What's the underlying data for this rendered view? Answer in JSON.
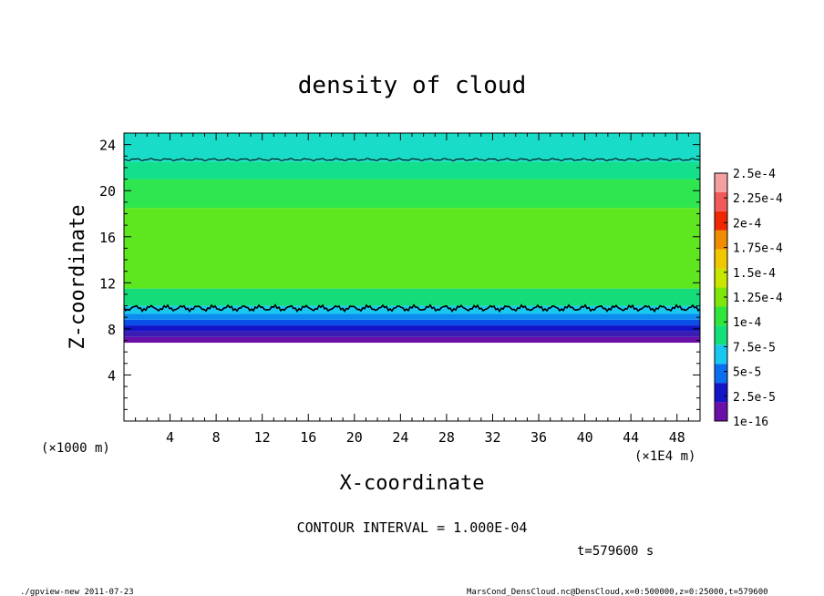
{
  "chart_data": {
    "type": "heatmap",
    "title": "density of cloud",
    "xlabel": "X-coordinate",
    "ylabel": "Z-coordinate",
    "x_units": "(×1E4 m)",
    "y_units": "(×1000 m)",
    "xlim": [
      0,
      50
    ],
    "ylim": [
      0,
      25
    ],
    "x_ticks": [
      4,
      8,
      12,
      16,
      20,
      24,
      28,
      32,
      36,
      40,
      44,
      48
    ],
    "y_ticks": [
      4,
      8,
      12,
      16,
      20,
      24
    ],
    "colorbar": {
      "labels": [
        "1e-16",
        "2.5e-5",
        "5e-5",
        "7.5e-5",
        "1e-4",
        "1.25e-4",
        "1.5e-4",
        "1.75e-4",
        "2e-4",
        "2.25e-4",
        "2.5e-4"
      ],
      "colors": [
        "#6a0fa8",
        "#1414c8",
        "#0a6ef0",
        "#19c8f0",
        "#14e07a",
        "#30e63c",
        "#7ee60a",
        "#c8e600",
        "#f0c800",
        "#f08c00",
        "#f02800",
        "#f05a5a",
        "#f5a0a0"
      ]
    },
    "bands": [
      {
        "z0": 6.8,
        "z1": 7.3,
        "color": "#6a0fa8"
      },
      {
        "z0": 7.3,
        "z1": 7.8,
        "color": "#3a1cb4"
      },
      {
        "z0": 7.8,
        "z1": 8.3,
        "color": "#1414c8"
      },
      {
        "z0": 8.3,
        "z1": 8.8,
        "color": "#0a50e6"
      },
      {
        "z0": 8.8,
        "z1": 9.3,
        "color": "#0a8cf0"
      },
      {
        "z0": 9.3,
        "z1": 10.0,
        "color": "#19c8f0"
      },
      {
        "z0": 10.0,
        "z1": 11.5,
        "color": "#14dc78"
      },
      {
        "z0": 11.5,
        "z1": 18.5,
        "color": "#5ee61e"
      },
      {
        "z0": 18.5,
        "z1": 21.0,
        "color": "#30e650"
      },
      {
        "z0": 21.0,
        "z1": 22.5,
        "color": "#14e08c"
      },
      {
        "z0": 22.5,
        "z1": 25.0,
        "color": "#19dcc8"
      }
    ],
    "contour_levels_z": [
      9.8,
      22.7
    ],
    "contour_interval": "CONTOUR INTERVAL = 1.000E-04"
  },
  "annotations": {
    "time": "t=579600 s",
    "footer_left": "./gpview-new  2011-07-23",
    "footer_right": "MarsCond_DensCloud.nc@DensCloud,x=0:500000,z=0:25000,t=579600"
  }
}
